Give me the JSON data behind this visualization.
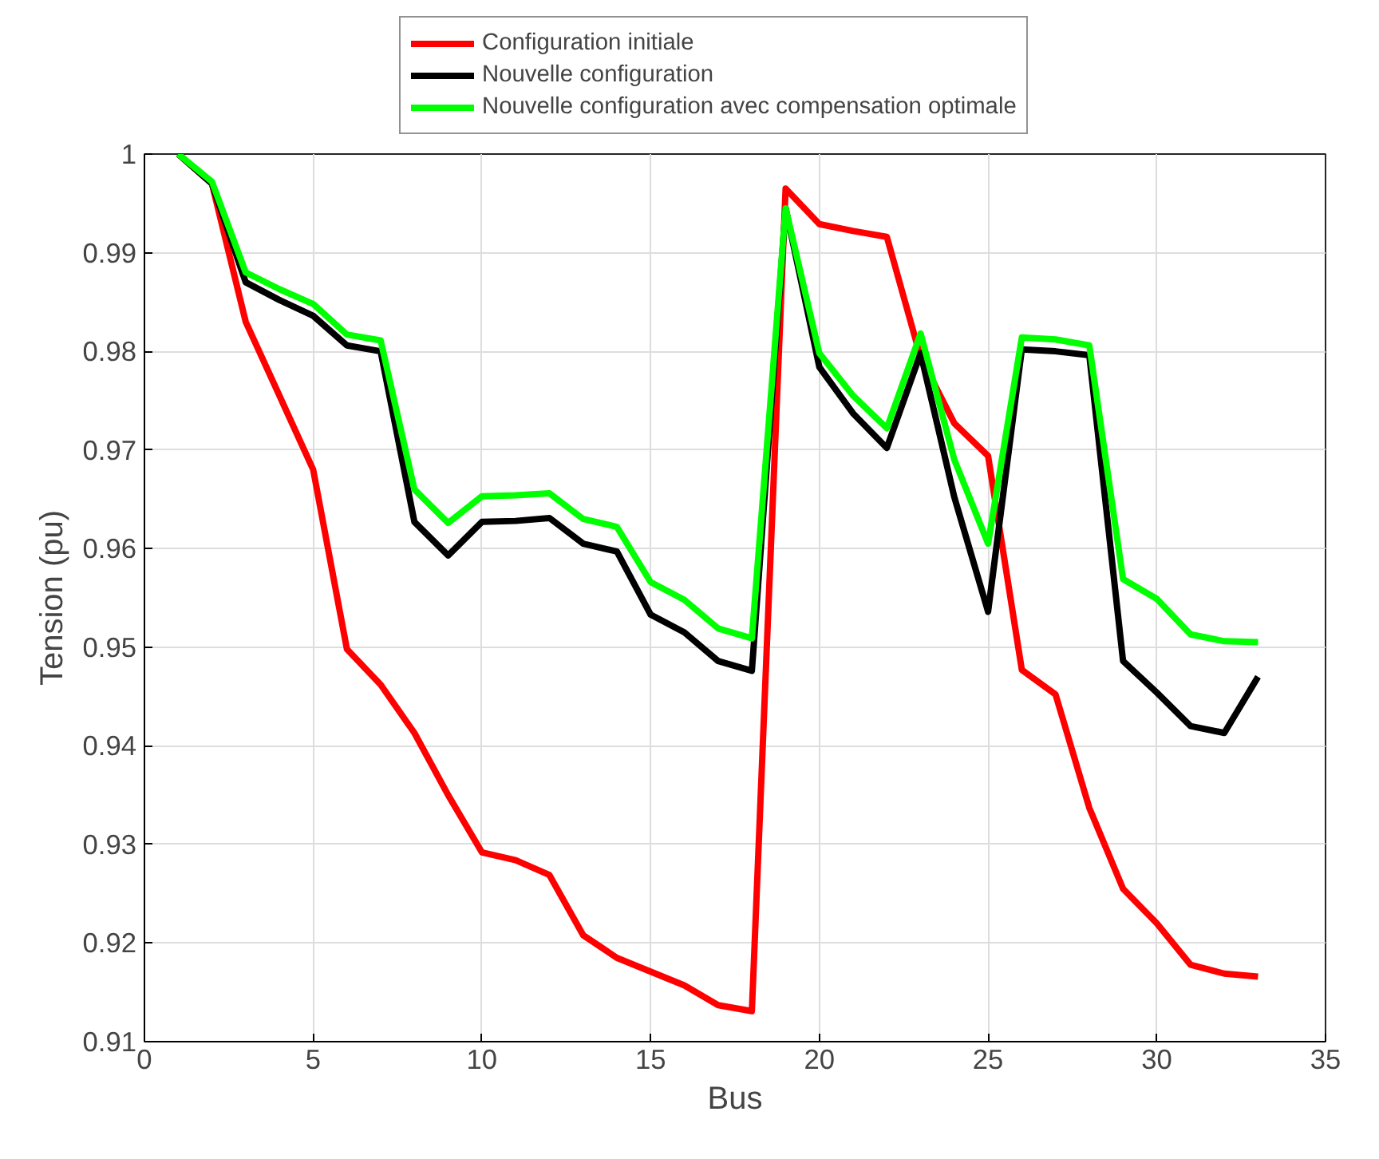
{
  "chart_data": {
    "type": "line",
    "xlabel": "Bus",
    "ylabel": "Tension (pu)",
    "x": [
      1,
      2,
      3,
      4,
      5,
      6,
      7,
      8,
      9,
      10,
      11,
      12,
      13,
      14,
      15,
      16,
      17,
      18,
      19,
      20,
      21,
      22,
      23,
      24,
      25,
      26,
      27,
      28,
      29,
      30,
      31,
      32,
      33
    ],
    "xlim": [
      0,
      35
    ],
    "ylim": [
      0.91,
      1
    ],
    "xticks": [
      0,
      5,
      10,
      15,
      20,
      25,
      30,
      35
    ],
    "yticks": [
      0.91,
      0.92,
      0.93,
      0.94,
      0.95,
      0.96,
      0.97,
      0.98,
      0.99,
      1
    ],
    "grid": true,
    "legend": "top",
    "line_style": "solid",
    "marker": "none",
    "series": [
      {
        "name": "Configuration initiale",
        "color": "#ff0000",
        "values": [
          1,
          0.997,
          0.983,
          0.9755,
          0.968,
          0.9498,
          0.9462,
          0.9413,
          0.935,
          0.9292,
          0.9284,
          0.9269,
          0.9208,
          0.9185,
          0.9171,
          0.9157,
          0.9137,
          0.9131,
          0.9965,
          0.9929,
          0.9922,
          0.9916,
          0.9794,
          0.9727,
          0.9694,
          0.9477,
          0.9452,
          0.9337,
          0.9255,
          0.922,
          0.9178,
          0.9169,
          0.9166
        ]
      },
      {
        "name": "Nouvelle configuration",
        "color": "#000000",
        "values": [
          1,
          0.997,
          0.987,
          0.9852,
          0.9836,
          0.9806,
          0.98,
          0.9627,
          0.9593,
          0.9627,
          0.9628,
          0.9631,
          0.9605,
          0.9597,
          0.9533,
          0.9515,
          0.9486,
          0.9476,
          0.9945,
          0.9784,
          0.9737,
          0.9702,
          0.9798,
          0.9652,
          0.9536,
          0.9802,
          0.98,
          0.9796,
          0.9486,
          0.9454,
          0.942,
          0.9413,
          0.947
        ]
      },
      {
        "name": "Nouvelle configuration avec compensation optimale",
        "color": "#00ff00",
        "values": [
          1,
          0.9972,
          0.988,
          0.9863,
          0.9848,
          0.9817,
          0.9811,
          0.966,
          0.9626,
          0.9653,
          0.9654,
          0.9656,
          0.963,
          0.9622,
          0.9566,
          0.9548,
          0.9519,
          0.9509,
          0.9945,
          0.9798,
          0.9755,
          0.9722,
          0.9818,
          0.969,
          0.9605,
          0.9814,
          0.9812,
          0.9806,
          0.9569,
          0.9549,
          0.9513,
          0.9506,
          0.9505
        ]
      }
    ]
  }
}
